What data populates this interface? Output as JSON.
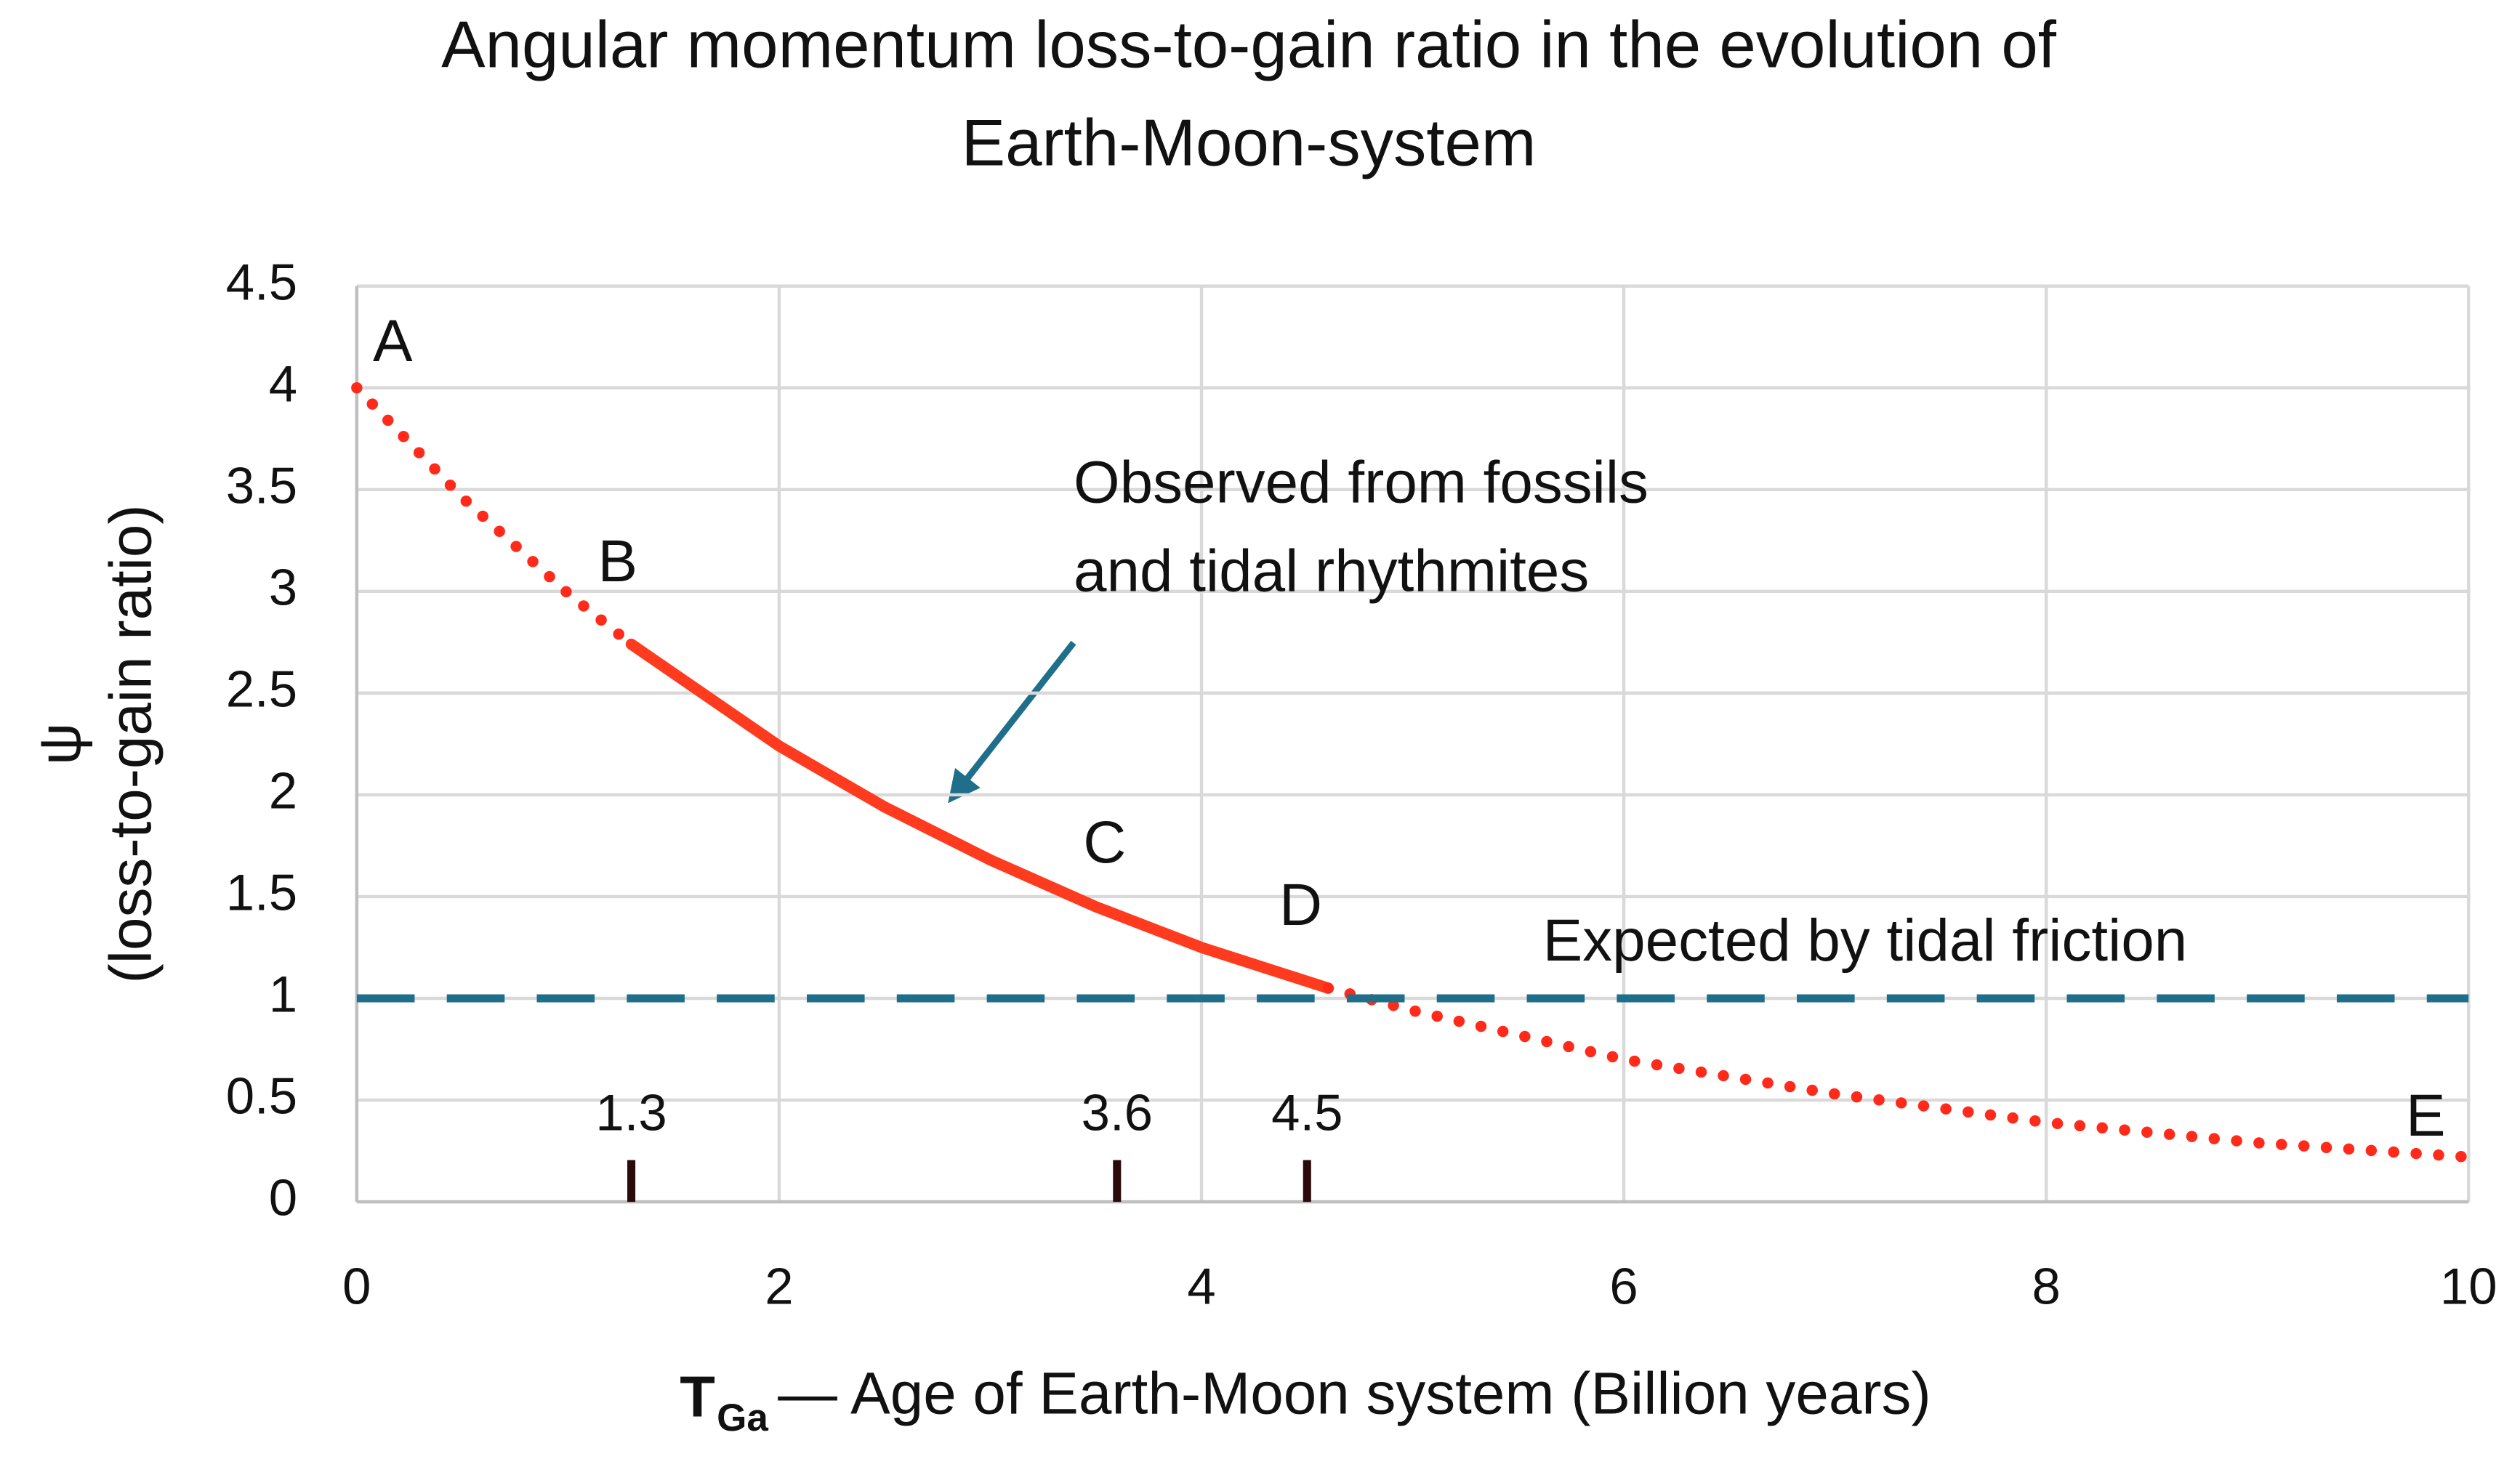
{
  "chart_data": {
    "type": "line",
    "title": [
      "Angular momentum loss-to-gain ratio  in the evolution of",
      "Earth-Moon-system"
    ],
    "ylabel": [
      "ψ",
      "(loss-to-gain ratio)"
    ],
    "xlabel_symbol": "T",
    "xlabel_subscript": "Ga",
    "xlabel": "— Age of Earth-Moon system (Billion years)",
    "xlim": [
      0,
      10
    ],
    "ylim": [
      0,
      4.5
    ],
    "xticks": [
      0,
      2,
      4,
      6,
      8,
      10
    ],
    "yticks": [
      0,
      0.5,
      1,
      1.5,
      2,
      2.5,
      3,
      3.5,
      4,
      4.5
    ],
    "grid": true,
    "series": [
      {
        "x": [
          0,
          0.5,
          1,
          1.3
        ],
        "values": [
          4,
          3.46,
          2.99,
          2.74
        ],
        "color": "#ff2a1a",
        "style": "dotted"
      },
      {
        "x": [
          1.3,
          2,
          2.5,
          3,
          3.5,
          4,
          4.6
        ],
        "values": [
          2.74,
          2.24,
          1.94,
          1.68,
          1.45,
          1.25,
          1.05
        ],
        "color": "#ff3b1f",
        "style": "solid"
      },
      {
        "x": [
          4.6,
          5,
          6,
          7,
          8,
          9,
          10
        ],
        "values": [
          1.05,
          0.94,
          0.7,
          0.53,
          0.39,
          0.29,
          0.22
        ],
        "color": "#ff2a1a",
        "style": "dotted"
      },
      {
        "x": [
          0,
          10
        ],
        "values": [
          1,
          1
        ],
        "color": "#1f6f8b",
        "style": "dashed"
      }
    ],
    "markers": [
      1.3,
      3.6,
      4.5
    ],
    "point_labels": [
      "A",
      "B",
      "C",
      "D",
      "E"
    ],
    "annotations": [
      "Observed from fossils",
      "and tidal rhythmites",
      "Expected by tidal friction"
    ]
  }
}
